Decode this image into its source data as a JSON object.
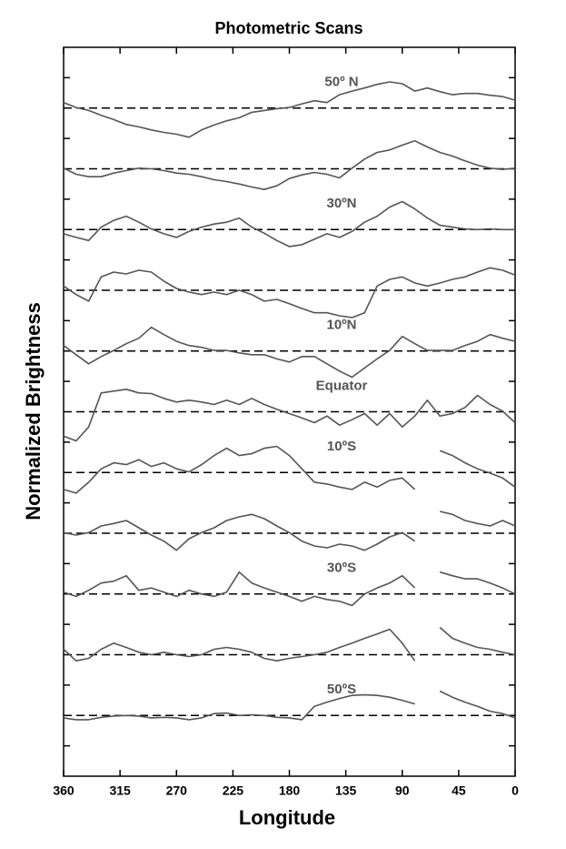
{
  "chart_data": {
    "type": "line",
    "title": "Photometric Scans",
    "xlabel": "Longitude",
    "ylabel": "Normalized Brightness",
    "xlim": [
      360,
      0
    ],
    "xticks": [
      360,
      315,
      270,
      225,
      180,
      135,
      90,
      45,
      0
    ],
    "ylim": [
      0,
      12
    ],
    "yticks": [
      0.5,
      1.5,
      2.5,
      3.5,
      4.5,
      5.5,
      6.5,
      7.5,
      8.5,
      9.5,
      10.5,
      11.5
    ],
    "color": "#555555",
    "x": [
      360,
      350,
      340,
      330,
      320,
      310,
      300,
      290,
      280,
      270,
      260,
      250,
      240,
      230,
      220,
      210,
      200,
      190,
      180,
      170,
      160,
      150,
      140,
      130,
      120,
      110,
      100,
      90,
      80,
      70,
      60,
      50,
      40,
      30,
      20,
      10,
      0
    ],
    "series": [
      {
        "label": "50º N",
        "baseline": 11,
        "values": [
          11.09,
          11.01,
          10.96,
          10.88,
          10.81,
          10.73,
          10.69,
          10.64,
          10.6,
          10.57,
          10.52,
          10.64,
          10.72,
          10.79,
          10.84,
          10.93,
          10.96,
          10.99,
          11.01,
          11.07,
          11.12,
          11.09,
          11.22,
          11.28,
          11.33,
          11.39,
          11.43,
          11.4,
          11.28,
          11.33,
          11.27,
          11.22,
          11.24,
          11.24,
          11.21,
          11.19,
          11.13
        ]
      },
      {
        "baseline": 10,
        "values": [
          10.01,
          9.91,
          9.87,
          9.87,
          9.93,
          9.97,
          10.01,
          10.0,
          9.97,
          9.93,
          9.91,
          9.87,
          9.82,
          9.79,
          9.75,
          9.7,
          9.66,
          9.72,
          9.84,
          9.9,
          9.94,
          9.91,
          9.85,
          10.01,
          10.16,
          10.27,
          10.31,
          10.39,
          10.46,
          10.36,
          10.27,
          10.21,
          10.13,
          10.06,
          10.01,
          9.99,
          10.01
        ]
      },
      {
        "label": "30ºN",
        "baseline": 9,
        "values": [
          8.93,
          8.87,
          8.82,
          9.04,
          9.15,
          9.22,
          9.12,
          9.01,
          8.93,
          8.87,
          8.97,
          9.04,
          9.09,
          9.12,
          9.19,
          9.04,
          8.94,
          8.82,
          8.72,
          8.75,
          8.84,
          8.93,
          8.87,
          8.97,
          9.12,
          9.22,
          9.37,
          9.46,
          9.34,
          9.19,
          9.07,
          9.04,
          9.01,
          9.0,
          9.01,
          9.0,
          9.0
        ]
      },
      {
        "baseline": 8,
        "values": [
          8.07,
          7.93,
          7.82,
          8.22,
          8.3,
          8.27,
          8.33,
          8.3,
          8.15,
          8.03,
          7.97,
          7.93,
          7.97,
          7.93,
          8.0,
          7.93,
          7.82,
          7.85,
          7.78,
          7.7,
          7.63,
          7.63,
          7.58,
          7.55,
          7.63,
          8.07,
          8.18,
          8.22,
          8.12,
          8.07,
          8.12,
          8.18,
          8.22,
          8.3,
          8.37,
          8.33,
          8.25
        ]
      },
      {
        "label": "10ºN",
        "baseline": 7,
        "values": [
          7.09,
          6.94,
          6.79,
          6.91,
          7.01,
          7.12,
          7.21,
          7.39,
          7.27,
          7.16,
          7.09,
          7.06,
          7.01,
          7.01,
          6.97,
          6.94,
          6.94,
          6.87,
          6.82,
          6.91,
          6.91,
          6.79,
          6.67,
          6.57,
          6.72,
          6.87,
          7.01,
          7.24,
          7.12,
          7.01,
          7.01,
          7.01,
          7.09,
          7.16,
          7.27,
          7.21,
          7.16
        ]
      },
      {
        "label": "Equator",
        "baseline": 6,
        "values": [
          5.6,
          5.52,
          5.75,
          6.31,
          6.34,
          6.37,
          6.31,
          6.3,
          6.22,
          6.16,
          6.19,
          6.16,
          6.12,
          6.19,
          6.12,
          6.22,
          6.12,
          6.04,
          5.97,
          5.9,
          5.82,
          5.93,
          5.78,
          5.87,
          5.97,
          5.78,
          5.97,
          5.75,
          5.93,
          6.19,
          5.93,
          5.97,
          6.07,
          6.27,
          6.12,
          6.01,
          5.82
        ]
      },
      {
        "label": "10ºS",
        "baseline": 5,
        "values": [
          4.72,
          4.66,
          4.84,
          5.06,
          5.16,
          5.13,
          5.21,
          5.1,
          5.16,
          5.06,
          5.01,
          5.13,
          5.28,
          5.4,
          5.28,
          5.31,
          5.4,
          5.43,
          5.28,
          5.06,
          4.84,
          4.81,
          4.76,
          4.72,
          4.84,
          4.76,
          4.87,
          4.91,
          4.72,
          null,
          5.36,
          5.28,
          5.16,
          5.06,
          4.99,
          4.91,
          4.76
        ]
      },
      {
        "baseline": 4,
        "values": [
          4.01,
          3.97,
          4.01,
          4.12,
          4.16,
          4.21,
          4.09,
          3.97,
          3.87,
          3.72,
          3.91,
          4.01,
          4.09,
          4.21,
          4.27,
          4.31,
          4.24,
          4.12,
          4.01,
          3.87,
          3.79,
          3.76,
          3.82,
          3.79,
          3.72,
          3.82,
          3.94,
          4.01,
          3.87,
          null,
          4.36,
          4.31,
          4.21,
          4.16,
          4.12,
          4.21,
          4.12
        ]
      },
      {
        "label": "30ºS",
        "baseline": 3,
        "values": [
          3.03,
          2.96,
          3.06,
          3.18,
          3.21,
          3.3,
          3.06,
          3.1,
          3.03,
          2.96,
          3.06,
          3.0,
          2.96,
          3.03,
          3.36,
          3.18,
          3.1,
          3.03,
          2.96,
          2.88,
          2.96,
          2.91,
          2.88,
          2.81,
          3.0,
          3.1,
          3.18,
          3.3,
          3.1,
          null,
          3.36,
          3.3,
          3.25,
          3.25,
          3.18,
          3.1,
          3.0
        ]
      },
      {
        "baseline": 2,
        "values": [
          2.09,
          1.9,
          1.94,
          2.09,
          2.19,
          2.12,
          2.04,
          2.0,
          2.04,
          2.0,
          1.97,
          2.0,
          2.09,
          2.12,
          2.09,
          2.04,
          1.94,
          1.9,
          1.94,
          1.97,
          2.0,
          2.04,
          2.12,
          2.19,
          2.27,
          2.34,
          2.42,
          2.19,
          1.9,
          null,
          2.45,
          2.27,
          2.19,
          2.12,
          2.09,
          2.04,
          2.0
        ]
      },
      {
        "label": "50ºS",
        "baseline": 1,
        "values": [
          0.96,
          0.93,
          0.93,
          0.97,
          0.99,
          1.0,
          0.99,
          0.96,
          0.97,
          0.96,
          0.93,
          0.96,
          1.03,
          1.04,
          1.0,
          1.01,
          1.0,
          0.97,
          0.96,
          0.93,
          1.15,
          1.22,
          1.28,
          1.33,
          1.34,
          1.33,
          1.3,
          1.25,
          1.19,
          null,
          1.4,
          1.3,
          1.22,
          1.15,
          1.07,
          1.03,
          0.96
        ]
      }
    ]
  }
}
